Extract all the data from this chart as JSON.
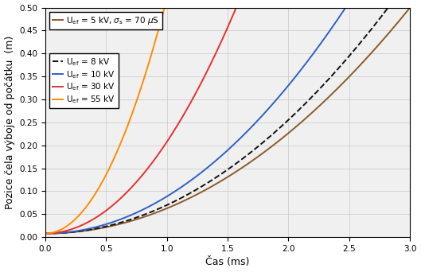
{
  "xlabel": "Čas (ms)",
  "ylabel": "Pozice čela výboje od počátku  (m)",
  "xlim": [
    0,
    3
  ],
  "ylim": [
    0,
    0.5
  ],
  "xticks": [
    0,
    0.5,
    1,
    1.5,
    2,
    2.5,
    3
  ],
  "yticks": [
    0,
    0.05,
    0.1,
    0.15,
    0.2,
    0.25,
    0.3,
    0.35,
    0.4,
    0.45,
    0.5
  ],
  "grid_color": "#c8c8c8",
  "background_color": "#f0f0f0",
  "curves": [
    {
      "label": "U$_{\\mathrm{ef}}$ = 5 kV, $\\sigma_{\\mathrm{s}}$ = 70 $\\mu$S",
      "color": "#8B5A2B",
      "linestyle": "-",
      "linewidth": 1.4,
      "t_end": 3.0,
      "power": 2.0,
      "y0": 0.008
    },
    {
      "label": "U$_{\\mathrm{ef}}$ = 8 kV",
      "color": "#111111",
      "linestyle": "--",
      "linewidth": 1.4,
      "t_end": 2.82,
      "power": 2.0,
      "y0": 0.008
    },
    {
      "label": "U$_{\\mathrm{ef}}$ = 10 kV",
      "color": "#3060C0",
      "linestyle": "-",
      "linewidth": 1.4,
      "t_end": 2.47,
      "power": 2.0,
      "y0": 0.008
    },
    {
      "label": "U$_{\\mathrm{ef}}$ = 30 kV",
      "color": "#E83030",
      "linestyle": "-",
      "linewidth": 1.4,
      "t_end": 1.57,
      "power": 2.0,
      "y0": 0.008
    },
    {
      "label": "U$_{\\mathrm{ef}}$ = 55 kV",
      "color": "#FF8C00",
      "linestyle": "-",
      "linewidth": 1.4,
      "t_end": 0.98,
      "power": 2.0,
      "y0": 0.008
    }
  ],
  "legend1_label": "U$_{\\mathrm{ef}}$ = 5 kV, $\\sigma_{\\mathrm{s}}$ = 70 $\\mu$S",
  "legend1_color": "#8B5A2B",
  "legend_fontsize": 7.5,
  "tick_fontsize": 7.5,
  "label_fontsize": 9
}
